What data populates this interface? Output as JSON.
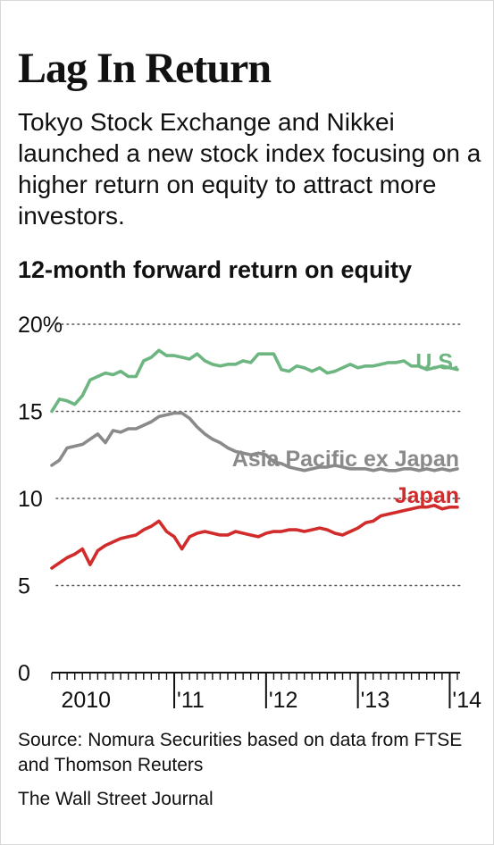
{
  "header": {
    "title": "Lag In Return",
    "subtitle": "Tokyo Stock Exchange and Nikkei launched a new stock index focusing on a higher return on equity to attract more investors."
  },
  "footer": {
    "source": "Source: Nomura Securities based on data from FTSE and Thomson Reuters",
    "credit": "The Wall Street Journal"
  },
  "colors": {
    "us": "#6db681",
    "asia": "#8a8a8a",
    "japan": "#d22b2b",
    "grid": "#555555",
    "text": "#111111"
  },
  "chart_data": {
    "type": "line",
    "title": "12-month forward return on equity",
    "xlabel": "",
    "ylabel": "",
    "ylim": [
      0,
      20
    ],
    "yticks": [
      {
        "value": 0,
        "label": "0"
      },
      {
        "value": 5,
        "label": "5"
      },
      {
        "value": 10,
        "label": "10"
      },
      {
        "value": 15,
        "label": "15"
      },
      {
        "value": 20,
        "label": "20%"
      }
    ],
    "grid": true,
    "xlim": [
      "2009-09",
      "2014-02"
    ],
    "xticks": [
      {
        "date": "2010-01",
        "label": "2010"
      },
      {
        "date": "2011-01",
        "label": "'11"
      },
      {
        "date": "2012-01",
        "label": "'12"
      },
      {
        "date": "2013-01",
        "label": "'13"
      },
      {
        "date": "2014-01",
        "label": "'14"
      }
    ],
    "x": [
      "2009-09",
      "2009-10",
      "2009-11",
      "2009-12",
      "2010-01",
      "2010-02",
      "2010-03",
      "2010-04",
      "2010-05",
      "2010-06",
      "2010-07",
      "2010-08",
      "2010-09",
      "2010-10",
      "2010-11",
      "2010-12",
      "2011-01",
      "2011-02",
      "2011-03",
      "2011-04",
      "2011-05",
      "2011-06",
      "2011-07",
      "2011-08",
      "2011-09",
      "2011-10",
      "2011-11",
      "2011-12",
      "2012-01",
      "2012-02",
      "2012-03",
      "2012-04",
      "2012-05",
      "2012-06",
      "2012-07",
      "2012-08",
      "2012-09",
      "2012-10",
      "2012-11",
      "2012-12",
      "2013-01",
      "2013-02",
      "2013-03",
      "2013-04",
      "2013-05",
      "2013-06",
      "2013-07",
      "2013-08",
      "2013-09",
      "2013-10",
      "2013-11",
      "2013-12",
      "2014-01",
      "2014-02"
    ],
    "series": [
      {
        "key": "us",
        "name": "U.S.",
        "values": [
          15.0,
          15.7,
          15.6,
          15.4,
          15.9,
          16.8,
          17.0,
          17.2,
          17.1,
          17.3,
          17.0,
          17.0,
          17.9,
          18.1,
          18.5,
          18.2,
          18.2,
          18.1,
          18.0,
          18.3,
          17.9,
          17.7,
          17.6,
          17.7,
          17.7,
          17.9,
          17.8,
          18.3,
          18.3,
          18.3,
          17.4,
          17.3,
          17.6,
          17.5,
          17.3,
          17.5,
          17.2,
          17.3,
          17.5,
          17.7,
          17.5,
          17.6,
          17.6,
          17.7,
          17.8,
          17.8,
          17.9,
          17.6,
          17.6,
          17.4,
          17.5,
          17.6,
          17.5,
          17.4
        ]
      },
      {
        "key": "asia",
        "name": "Asia Pacific ex Japan",
        "values": [
          11.9,
          12.2,
          12.9,
          13.0,
          13.1,
          13.4,
          13.7,
          13.2,
          13.9,
          13.8,
          14.0,
          14.0,
          14.2,
          14.4,
          14.7,
          14.8,
          14.9,
          14.9,
          14.6,
          14.1,
          13.7,
          13.4,
          13.2,
          12.9,
          12.7,
          12.6,
          12.5,
          12.6,
          12.5,
          12.1,
          12.0,
          11.8,
          11.7,
          11.6,
          11.7,
          11.8,
          11.8,
          11.9,
          11.8,
          11.7,
          11.7,
          11.7,
          11.6,
          11.7,
          11.6,
          11.6,
          11.7,
          11.7,
          11.6,
          11.7,
          11.6,
          11.7,
          11.6,
          11.7
        ]
      },
      {
        "key": "japan",
        "name": "Japan",
        "values": [
          6.0,
          6.3,
          6.6,
          6.8,
          7.1,
          6.2,
          7.0,
          7.3,
          7.5,
          7.7,
          7.8,
          7.9,
          8.2,
          8.4,
          8.7,
          8.1,
          7.8,
          7.1,
          7.8,
          8.0,
          8.1,
          8.0,
          7.9,
          7.9,
          8.1,
          8.0,
          7.9,
          7.8,
          8.0,
          8.1,
          8.1,
          8.2,
          8.2,
          8.1,
          8.2,
          8.3,
          8.2,
          8.0,
          7.9,
          8.1,
          8.3,
          8.6,
          8.7,
          9.0,
          9.1,
          9.2,
          9.3,
          9.4,
          9.5,
          9.5,
          9.6,
          9.4,
          9.5,
          9.5
        ]
      }
    ]
  }
}
